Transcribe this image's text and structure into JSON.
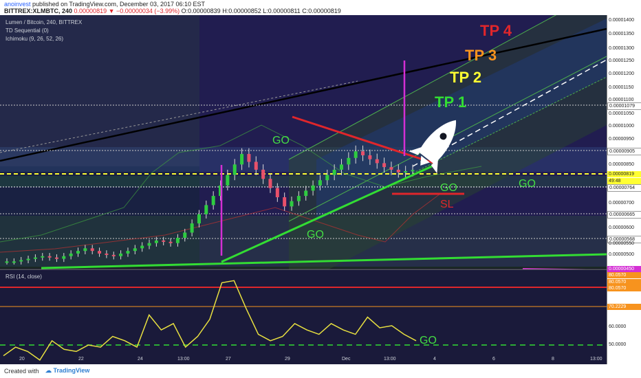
{
  "header": {
    "publisher": "anoinvest",
    "published_text": "published on TradingView.com, December 03, 2017 06:10 EST",
    "symbol": "BITTREX:XLMBTC, 240",
    "change": "−0.00000034 (−3.99%)",
    "open": "O:0.00000839",
    "high": "H:0.00000852",
    "low": "L:0.00000811",
    "close": "C:0.00000819",
    "last": "0.00000819"
  },
  "legend": {
    "pair": "Lumen / Bitcoin, 240, BITTREX",
    "td": "TD Sequential (0)",
    "ichimoku": "Ichimoku (9, 26, 52, 26)",
    "rsi": "RSI (14, close)"
  },
  "annotations": {
    "tp4": "TP 4",
    "tp3": "TP 3",
    "tp2": "TP 2",
    "tp1": "TP 1",
    "go": "GO",
    "sl": "SL"
  },
  "colors": {
    "tp4": "#e0262b",
    "tp3": "#f7931e",
    "tp2": "#ffff33",
    "tp1": "#33dd33",
    "go": "#44dd44",
    "sl": "#e0262b",
    "support": "#33dd33",
    "resistance": "#e0262b",
    "marker": "#d42fd4",
    "rsi_line": "#e8e040"
  },
  "price_axis": {
    "ticks": [
      "0.00001400",
      "0.00001350",
      "0.00001300",
      "0.00001250",
      "0.00001200",
      "0.00001150",
      "0.00001100",
      "0.00001050",
      "0.00001000",
      "0.00000950",
      "0.00000850",
      "0.00000800",
      "0.00000750",
      "0.00000700",
      "0.00000650",
      "0.00000600",
      "0.00000550",
      "0.00000500"
    ],
    "boxes": {
      "b1079": "0.00001079",
      "b905": "0.00000905",
      "b819": "0.00000819",
      "timer": "49:48",
      "b764": "0.00000764",
      "b665": "0.00000665",
      "b568": "0.00000568",
      "b450": "0.00000450"
    }
  },
  "rsi_axis": {
    "ticks": [
      "80.0570",
      "80.0570",
      "80.0570",
      "70.2229",
      "60.0000",
      "50.0000"
    ]
  },
  "x_axis": [
    "20",
    "22",
    "24",
    "13:00",
    "27",
    "29",
    "Dec",
    "13:00",
    "4",
    "6",
    "8",
    "13:00"
  ],
  "footer": {
    "created": "Created with",
    "brand": "TradingView"
  },
  "chart_data": {
    "type": "candlestick",
    "title": "Lumen / Bitcoin, 240, BITTREX",
    "ylim": [
      4.5e-06,
      1.41e-05
    ],
    "x": [
      "20",
      "22",
      "24",
      "13:00",
      "27",
      "29",
      "Dec",
      "13:00",
      "4",
      "6",
      "8",
      "13:00"
    ],
    "close_series_approx": [
      4.7e-06,
      4.8e-06,
      4.9e-06,
      4.8e-06,
      5e-06,
      5.2e-06,
      5e-06,
      4.9e-06,
      5.1e-06,
      5.3e-06,
      5.5e-06,
      5.4e-06,
      5.8e-06,
      6.5e-06,
      7.2e-06,
      8e-06,
      8.8e-06,
      8.2e-06,
      7.5e-06,
      6.8e-06,
      7.2e-06,
      7.6e-06,
      8e-06,
      8.4e-06,
      8.9e-06,
      8.6e-06,
      8.3e-06,
      8.1e-06,
      8.19e-06
    ],
    "horizontal_levels": [
      1.079e-05,
      9.05e-06,
      8.19e-06,
      7.64e-06,
      6.65e-06,
      5.68e-06,
      4.5e-06
    ],
    "rsi": {
      "ylim": [
        45,
        85
      ],
      "levels": [
        80.057,
        70.2229,
        50
      ],
      "values_approx": [
        48,
        52,
        50,
        46,
        55,
        51,
        50,
        53,
        52,
        57,
        55,
        52,
        67,
        60,
        63,
        52,
        57,
        65,
        82,
        83,
        70,
        58,
        55,
        57,
        63,
        60,
        58,
        63,
        60,
        58,
        66,
        61,
        62,
        58,
        55
      ]
    }
  }
}
